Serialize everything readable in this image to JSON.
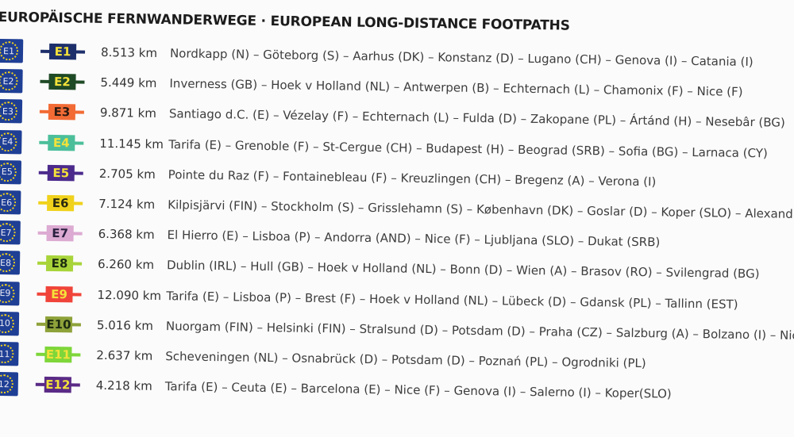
{
  "title": "EUROPÄISCHE FERNWANDERWEGE · EUROPEAN LONG-DISTANCE FOOTPATHS",
  "routes": [
    {
      "code": "E1",
      "flag": "E1",
      "distance": "8.513 km",
      "route": "Nordkapp (N) – Göteborg (S) – Aarhus (DK) – Konstanz (D) – Lugano (CH) – Genova (I) – Catania (I)",
      "color": "#1d2f6b",
      "text_color": "#f4e23a"
    },
    {
      "code": "E2",
      "flag": "E2",
      "distance": "5.449 km",
      "route": "Inverness (GB) – Hoek v Holland (NL) – Antwerpen (B) – Echternach (L) – Chamonix (F) – Nice (F)",
      "color": "#1f4a26",
      "text_color": "#f4e23a"
    },
    {
      "code": "E3",
      "flag": "E3",
      "distance": "9.871 km",
      "route": "Santiago d.C. (E) – Vézelay (F) – Echternach (L) – Fulda (D) – Zakopane (PL) – Ártánd (H) – Nesebâr (BG)",
      "color": "#f26b35",
      "text_color": "#2a1a10"
    },
    {
      "code": "E4",
      "flag": "E4",
      "distance": "11.145 km",
      "route": "Tarifa (E) – Grenoble (F) – St-Cergue (CH) – Budapest (H) – Beograd (SRB) – Sofia (BG) – Larnaca (CY)",
      "color": "#4cbf9a",
      "text_color": "#f4e23a"
    },
    {
      "code": "E5",
      "flag": "E5",
      "distance": "2.705 km",
      "route": "Pointe du Raz (F) – Fontainebleau (F) – Kreuzlingen (CH) – Bregenz (A) – Verona (I)",
      "color": "#4b2a8c",
      "text_color": "#f4e23a"
    },
    {
      "code": "E6",
      "flag": "E6",
      "distance": "7.124 km",
      "route": "Kilpisjärvi (FIN) – Stockholm (S) – Grisslehamn (S) – København (DK) – Goslar (D) – Koper (SLO) – Alexandroupolis",
      "color": "#f0d21c",
      "text_color": "#2a2a10"
    },
    {
      "code": "E7",
      "flag": "E7",
      "distance": "6.368 km",
      "route": "El Hierro (E) – Lisboa (P) – Andorra (AND) – Nice (F) – Ljubljana (SLO) – Dukat (SRB)",
      "color": "#dcaad2",
      "text_color": "#2a2040"
    },
    {
      "code": "E8",
      "flag": "E8",
      "distance": "6.260 km",
      "route": "Dublin (IRL) – Hull (GB) – Hoek v Holland (NL) – Bonn (D) – Wien (A) – Brasov (RO) – Svilengrad (BG)",
      "color": "#a8d43a",
      "text_color": "#1c2a10"
    },
    {
      "code": "E9",
      "flag": "E9",
      "distance": "12.090 km",
      "route": "Tarifa (E) – Lisboa (P) – Brest (F) – Hoek v Holland (NL) – Lübeck (D) – Gdansk (PL) – Tallinn (EST)",
      "color": "#f0443a",
      "text_color": "#f4e23a"
    },
    {
      "code": "E10",
      "flag": "10",
      "distance": "5.016 km",
      "route": "Nuorgam (FIN) – Helsinki (FIN) – Stralsund (D) – Potsdam (D) – Praha (CZ) – Salzburg (A) – Bolzano (I) – Nice (F)",
      "color": "#8ea23a",
      "text_color": "#1c2a10"
    },
    {
      "code": "E11",
      "flag": "11",
      "distance": "2.637 km",
      "route": "Scheveningen (NL) – Osnabrück (D) – Potsdam (D) – Poznań (PL) – Ogrodniki (PL)",
      "color": "#7ed63a",
      "text_color": "#f4e23a"
    },
    {
      "code": "E12",
      "flag": "12",
      "distance": "4.218 km",
      "route": "Tarifa (E) – Ceuta (E) – Barcelona (E) – Nice (F) – Genova (I) – Salerno (I) – Koper(SLO)",
      "color": "#5a2a86",
      "text_color": "#f4e23a"
    }
  ]
}
